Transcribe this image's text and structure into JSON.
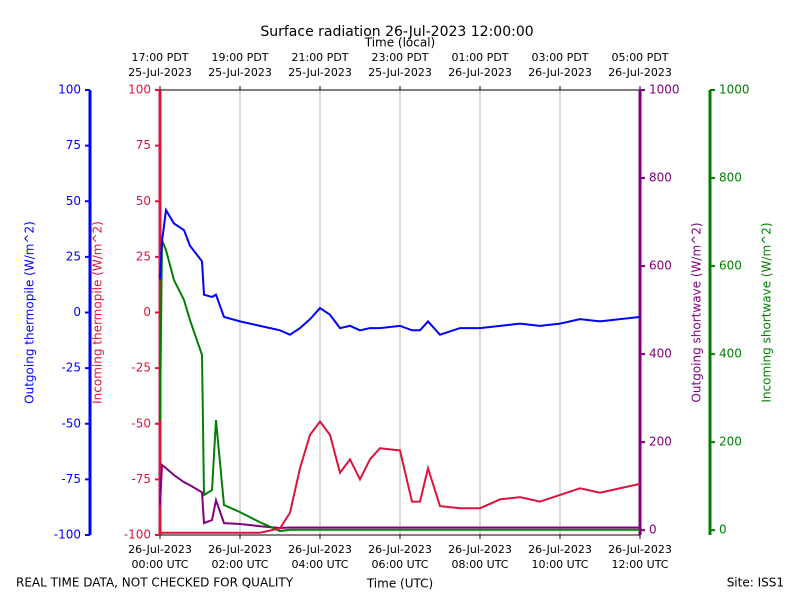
{
  "chart_data": {
    "type": "line",
    "title": "Surface radiation 26-Jul-2023 12:00:00",
    "xlabel": "Time (UTC)",
    "x2label": "Time (local)",
    "footer_left": "REAL TIME DATA, NOT CHECKED FOR QUALITY",
    "footer_right": "Site: ISS1",
    "grid": "x",
    "xlim": [
      0,
      12
    ],
    "xticks": [
      {
        "value": 0,
        "label": [
          "26-Jul-2023",
          "00:00 UTC"
        ]
      },
      {
        "value": 2,
        "label": [
          "26-Jul-2023",
          "02:00 UTC"
        ]
      },
      {
        "value": 4,
        "label": [
          "26-Jul-2023",
          "04:00 UTC"
        ]
      },
      {
        "value": 6,
        "label": [
          "26-Jul-2023",
          "06:00 UTC"
        ]
      },
      {
        "value": 8,
        "label": [
          "26-Jul-2023",
          "08:00 UTC"
        ]
      },
      {
        "value": 10,
        "label": [
          "26-Jul-2023",
          "10:00 UTC"
        ]
      },
      {
        "value": 12,
        "label": [
          "26-Jul-2023",
          "12:00 UTC"
        ]
      }
    ],
    "x2ticks": [
      {
        "value": 0,
        "label": [
          "17:00 PDT",
          "25-Jul-2023"
        ]
      },
      {
        "value": 2,
        "label": [
          "19:00 PDT",
          "25-Jul-2023"
        ]
      },
      {
        "value": 4,
        "label": [
          "21:00 PDT",
          "25-Jul-2023"
        ]
      },
      {
        "value": 6,
        "label": [
          "23:00 PDT",
          "25-Jul-2023"
        ]
      },
      {
        "value": 8,
        "label": [
          "01:00 PDT",
          "26-Jul-2023"
        ]
      },
      {
        "value": 10,
        "label": [
          "03:00 PDT",
          "26-Jul-2023"
        ]
      },
      {
        "value": 12,
        "label": [
          "05:00 PDT",
          "26-Jul-2023"
        ]
      }
    ],
    "axes": [
      {
        "label": "Outgoing thermopile (W/m^2)",
        "color": "#0000ff",
        "lim": [
          -100,
          100
        ],
        "ticks": [
          -100,
          -75,
          -50,
          -25,
          0,
          25,
          50,
          75,
          100
        ]
      },
      {
        "label": "Incoming thermopile (W/m^2)",
        "color": "#dc143c",
        "lim": [
          -100,
          100
        ],
        "ticks": [
          -100,
          -75,
          -50,
          -25,
          0,
          25,
          50,
          75,
          100
        ]
      },
      {
        "label": "Outgoing shortwave (W/m^2)",
        "color": "#800080",
        "lim": [
          -11,
          1000
        ],
        "ticks": [
          0,
          200,
          400,
          600,
          800,
          1000
        ]
      },
      {
        "label": "Incoming shortwave (W/m^2)",
        "color": "#008000",
        "lim": [
          -11,
          1000
        ],
        "ticks": [
          0,
          200,
          400,
          600,
          800,
          1000
        ]
      }
    ],
    "x": [
      0,
      0.05,
      0.15,
      0.35,
      0.6,
      0.75,
      1.05,
      1.1,
      1.3,
      1.4,
      1.6,
      2,
      2.5,
      3,
      3.25,
      3.5,
      3.75,
      4,
      4.25,
      4.5,
      4.75,
      5,
      5.25,
      5.5,
      6,
      6.3,
      6.5,
      6.7,
      7,
      7.5,
      8,
      8.5,
      9,
      9.5,
      10,
      10.5,
      11,
      11.5,
      12
    ],
    "series": [
      {
        "axis": 0,
        "color": "#0000ff",
        "values": [
          15,
          32,
          46,
          40,
          37,
          30,
          23,
          8,
          7,
          8,
          -2,
          -4,
          -6,
          -8,
          -10,
          -7,
          -3,
          2,
          -1,
          -7,
          -6,
          -8,
          -7,
          -7,
          -6,
          -8,
          -8,
          -4,
          -10,
          -7,
          -7,
          -6,
          -5,
          -6,
          -5,
          -3,
          -4,
          -3,
          -2
        ]
      },
      {
        "axis": 1,
        "color": "#dc143c",
        "values": [
          -99,
          -99,
          -99,
          -99,
          -99,
          -99,
          -99,
          -99,
          -99,
          -99,
          -99,
          -99,
          -99,
          -97,
          -90,
          -70,
          -55,
          -49,
          -55,
          -72,
          -66,
          -75,
          -66,
          -61,
          -62,
          -85,
          -85,
          -70,
          -87,
          -88,
          -88,
          -84,
          -83,
          -85,
          -82,
          -79,
          -81,
          -79,
          -77
        ]
      },
      {
        "axis": 2,
        "color": "#800080",
        "values": [
          57,
          148,
          141,
          125,
          109,
          102,
          86,
          16,
          23,
          68,
          16,
          14,
          9,
          5,
          6,
          6,
          6,
          6,
          6,
          6,
          6,
          6,
          6,
          6,
          6,
          6,
          6,
          6,
          6,
          6,
          6,
          6,
          6,
          6,
          6,
          6,
          6,
          6,
          6
        ]
      },
      {
        "axis": 3,
        "color": "#008000",
        "values": [
          250,
          659,
          636,
          568,
          523,
          477,
          398,
          80,
          91,
          250,
          57,
          41,
          18,
          -2,
          1,
          1,
          1,
          1,
          1,
          1,
          1,
          1,
          1,
          1,
          1,
          1,
          1,
          1,
          1,
          1,
          1,
          1,
          1,
          1,
          1,
          1,
          1,
          1,
          1
        ]
      }
    ]
  }
}
